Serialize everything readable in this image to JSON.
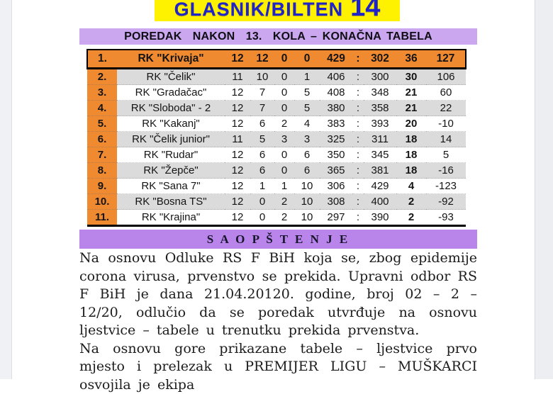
{
  "title": {
    "text": "GLASNIK/BILTEN",
    "number": "14"
  },
  "standings": {
    "header": "POREDAK  NAKON  13.  KOLA – KONAČNA TABELA",
    "rows": [
      {
        "rank": "1.",
        "team": "RK \"Krivaja\"",
        "gp": "12",
        "w": "12",
        "d": "0",
        "l": "0",
        "gf": "429",
        "colon": ":",
        "ga": "302",
        "pts": "36",
        "diff": "127"
      },
      {
        "rank": "2.",
        "team": "RK \"Čelik\"",
        "gp": "11",
        "w": "10",
        "d": "0",
        "l": "1",
        "gf": "406",
        "colon": ":",
        "ga": "300",
        "pts": "30",
        "diff": "106"
      },
      {
        "rank": "3.",
        "team": "RK \"Gradačac\"",
        "gp": "12",
        "w": "7",
        "d": "0",
        "l": "5",
        "gf": "408",
        "colon": ":",
        "ga": "348",
        "pts": "21",
        "diff": "60"
      },
      {
        "rank": "4.",
        "team": "RK \"Sloboda\" - 2",
        "gp": "12",
        "w": "7",
        "d": "0",
        "l": "5",
        "gf": "380",
        "colon": ":",
        "ga": "358",
        "pts": "21",
        "diff": "22"
      },
      {
        "rank": "5.",
        "team": "RK \"Kakanj\"",
        "gp": "12",
        "w": "6",
        "d": "2",
        "l": "4",
        "gf": "383",
        "colon": ":",
        "ga": "393",
        "pts": "20",
        "diff": "-10"
      },
      {
        "rank": "6.",
        "team": "RK \"Čelik junior\"",
        "gp": "11",
        "w": "5",
        "d": "3",
        "l": "3",
        "gf": "325",
        "colon": ":",
        "ga": "311",
        "pts": "18",
        "diff": "14"
      },
      {
        "rank": "7.",
        "team": "RK \"Rudar\"",
        "gp": "12",
        "w": "6",
        "d": "0",
        "l": "6",
        "gf": "350",
        "colon": ":",
        "ga": "345",
        "pts": "18",
        "diff": "5"
      },
      {
        "rank": "8.",
        "team": "RK \"Žepče\"",
        "gp": "12",
        "w": "6",
        "d": "0",
        "l": "6",
        "gf": "365",
        "colon": ":",
        "ga": "381",
        "pts": "18",
        "diff": "-16"
      },
      {
        "rank": "9.",
        "team": "RK \"Sana 7\"",
        "gp": "12",
        "w": "1",
        "d": "1",
        "l": "10",
        "gf": "306",
        "colon": ":",
        "ga": "429",
        "pts": "4",
        "diff": "-123"
      },
      {
        "rank": "10.",
        "team": "RK \"Bosna TS\"",
        "gp": "12",
        "w": "0",
        "d": "2",
        "l": "10",
        "gf": "308",
        "colon": ":",
        "ga": "400",
        "pts": "2",
        "diff": "-92"
      },
      {
        "rank": "11.",
        "team": "RK \"Krajina\"",
        "gp": "12",
        "w": "0",
        "d": "2",
        "l": "10",
        "gf": "297",
        "colon": ":",
        "ga": "390",
        "pts": "2",
        "diff": "-93"
      }
    ]
  },
  "announcement": {
    "header": "S A O P Š T E N J E",
    "paragraphs": [
      "Na osnovu Odluke RS F BiH koja se, zbog epidemije corona virusa, prvenstvo se prekida. Upravni odbor RS F BiH je dana 21.04.20120. godine, broj 02 – 2 – 12/20, odlučio da se poredak utvrđuje na osnovu ljestvice – tabele u trenutku prekida prvenstva.",
      "Na osnovu gore prikazane tabele – ljestvice prvo mjesto i prelezak u PREMIJER LIGU – MUŠKARCI osvojila je ekipa"
    ]
  },
  "colors": {
    "masthead_bg": "#FFF200",
    "masthead_text": "#1F24C8",
    "header_bar_bg": "#CBA7EF",
    "announcement_bar_bg": "#BA85EA",
    "highlight_orange": "#F08A30",
    "row_alt_gray": "#DBDBDB"
  }
}
